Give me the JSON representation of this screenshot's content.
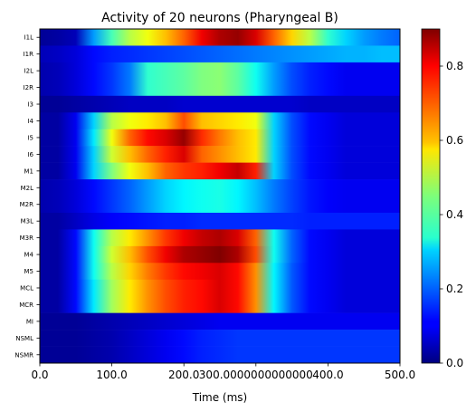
{
  "chart_data": {
    "type": "heatmap",
    "title": "Activity of 20 neurons (Pharyngeal B)",
    "xlabel": "Time (ms)",
    "ylabel": "",
    "xlim": [
      0,
      500
    ],
    "x_ticks": [
      "0.0",
      "100.0",
      "200.0",
      "300.0000000000000",
      "400.0",
      "500.0"
    ],
    "colorbar": {
      "range": [
        0.0,
        0.9
      ],
      "ticks": [
        "0.0",
        "0.2",
        "0.4",
        "0.6",
        "0.8"
      ],
      "colormap": "jet"
    },
    "time_ms": [
      0,
      25,
      50,
      75,
      100,
      125,
      150,
      175,
      200,
      225,
      250,
      275,
      300,
      325,
      350,
      375,
      400,
      425,
      450,
      475,
      500
    ],
    "series": [
      {
        "name": "I1L",
        "values": [
          0.02,
          0.03,
          0.05,
          0.25,
          0.4,
          0.5,
          0.55,
          0.62,
          0.7,
          0.8,
          0.86,
          0.88,
          0.82,
          0.7,
          0.6,
          0.5,
          0.38,
          0.3,
          0.25,
          0.22,
          0.2
        ]
      },
      {
        "name": "I1R",
        "values": [
          0.05,
          0.06,
          0.08,
          0.12,
          0.14,
          0.15,
          0.16,
          0.17,
          0.18,
          0.19,
          0.2,
          0.21,
          0.22,
          0.23,
          0.24,
          0.25,
          0.26,
          0.27,
          0.27,
          0.28,
          0.28
        ]
      },
      {
        "name": "I2L",
        "values": [
          0.04,
          0.05,
          0.08,
          0.12,
          0.16,
          0.22,
          0.38,
          0.4,
          0.42,
          0.45,
          0.46,
          0.42,
          0.35,
          0.25,
          0.18,
          0.14,
          0.12,
          0.1,
          0.1,
          0.1,
          0.1
        ]
      },
      {
        "name": "I2R",
        "values": [
          0.04,
          0.05,
          0.08,
          0.12,
          0.16,
          0.22,
          0.38,
          0.4,
          0.42,
          0.45,
          0.46,
          0.42,
          0.35,
          0.25,
          0.18,
          0.14,
          0.12,
          0.1,
          0.1,
          0.1,
          0.1
        ]
      },
      {
        "name": "I3",
        "values": [
          0.02,
          0.02,
          0.03,
          0.04,
          0.05,
          0.06,
          0.06,
          0.06,
          0.07,
          0.07,
          0.07,
          0.07,
          0.07,
          0.07,
          0.07,
          0.06,
          0.06,
          0.06,
          0.06,
          0.06,
          0.06
        ]
      },
      {
        "name": "I4",
        "values": [
          0.03,
          0.03,
          0.1,
          0.3,
          0.5,
          0.55,
          0.58,
          0.62,
          0.72,
          0.62,
          0.6,
          0.58,
          0.55,
          0.3,
          0.18,
          0.12,
          0.1,
          0.08,
          0.08,
          0.08,
          0.08
        ]
      },
      {
        "name": "I5",
        "values": [
          0.03,
          0.03,
          0.1,
          0.32,
          0.55,
          0.7,
          0.78,
          0.82,
          0.88,
          0.75,
          0.68,
          0.62,
          0.58,
          0.3,
          0.18,
          0.12,
          0.1,
          0.08,
          0.08,
          0.08,
          0.08
        ]
      },
      {
        "name": "I6",
        "values": [
          0.03,
          0.03,
          0.1,
          0.3,
          0.52,
          0.62,
          0.7,
          0.76,
          0.82,
          0.7,
          0.66,
          0.62,
          0.58,
          0.3,
          0.18,
          0.12,
          0.1,
          0.08,
          0.08,
          0.08,
          0.08
        ]
      },
      {
        "name": "M1",
        "values": [
          0.03,
          0.03,
          0.1,
          0.3,
          0.45,
          0.55,
          0.62,
          0.7,
          0.74,
          0.76,
          0.8,
          0.84,
          0.76,
          0.3,
          0.18,
          0.12,
          0.1,
          0.08,
          0.08,
          0.08,
          0.08
        ]
      },
      {
        "name": "M2L",
        "values": [
          0.04,
          0.05,
          0.08,
          0.12,
          0.16,
          0.2,
          0.25,
          0.3,
          0.33,
          0.35,
          0.36,
          0.33,
          0.28,
          0.22,
          0.17,
          0.13,
          0.11,
          0.1,
          0.1,
          0.1,
          0.1
        ]
      },
      {
        "name": "M2R",
        "values": [
          0.04,
          0.05,
          0.08,
          0.12,
          0.16,
          0.2,
          0.25,
          0.3,
          0.33,
          0.35,
          0.36,
          0.33,
          0.28,
          0.22,
          0.17,
          0.13,
          0.11,
          0.1,
          0.1,
          0.1,
          0.1
        ]
      },
      {
        "name": "M3L",
        "values": [
          0.03,
          0.03,
          0.06,
          0.09,
          0.11,
          0.12,
          0.13,
          0.14,
          0.14,
          0.15,
          0.15,
          0.15,
          0.15,
          0.15,
          0.15,
          0.14,
          0.14,
          0.14,
          0.14,
          0.14,
          0.14
        ]
      },
      {
        "name": "M3R",
        "values": [
          0.03,
          0.03,
          0.12,
          0.35,
          0.5,
          0.58,
          0.66,
          0.74,
          0.8,
          0.84,
          0.86,
          0.82,
          0.7,
          0.35,
          0.2,
          0.12,
          0.1,
          0.08,
          0.08,
          0.08,
          0.08
        ]
      },
      {
        "name": "M4",
        "values": [
          0.03,
          0.03,
          0.12,
          0.35,
          0.52,
          0.62,
          0.72,
          0.8,
          0.86,
          0.88,
          0.9,
          0.86,
          0.72,
          0.35,
          0.2,
          0.12,
          0.1,
          0.08,
          0.08,
          0.08,
          0.08
        ]
      },
      {
        "name": "M5",
        "values": [
          0.03,
          0.03,
          0.12,
          0.35,
          0.5,
          0.6,
          0.68,
          0.74,
          0.78,
          0.8,
          0.82,
          0.78,
          0.66,
          0.33,
          0.19,
          0.12,
          0.1,
          0.08,
          0.08,
          0.08,
          0.08
        ]
      },
      {
        "name": "MCL",
        "values": [
          0.03,
          0.03,
          0.12,
          0.32,
          0.48,
          0.58,
          0.66,
          0.72,
          0.76,
          0.78,
          0.82,
          0.78,
          0.66,
          0.33,
          0.19,
          0.12,
          0.1,
          0.08,
          0.08,
          0.08,
          0.08
        ]
      },
      {
        "name": "MCR",
        "values": [
          0.03,
          0.03,
          0.12,
          0.32,
          0.48,
          0.58,
          0.66,
          0.72,
          0.76,
          0.78,
          0.82,
          0.78,
          0.66,
          0.33,
          0.19,
          0.12,
          0.1,
          0.08,
          0.08,
          0.08,
          0.08
        ]
      },
      {
        "name": "MI",
        "values": [
          0.02,
          0.02,
          0.02,
          0.03,
          0.04,
          0.05,
          0.06,
          0.07,
          0.08,
          0.09,
          0.1,
          0.1,
          0.1,
          0.1,
          0.1,
          0.1,
          0.1,
          0.1,
          0.1,
          0.1,
          0.1
        ]
      },
      {
        "name": "NSML",
        "values": [
          0.02,
          0.02,
          0.02,
          0.03,
          0.04,
          0.06,
          0.08,
          0.1,
          0.12,
          0.14,
          0.15,
          0.16,
          0.16,
          0.16,
          0.16,
          0.16,
          0.16,
          0.16,
          0.16,
          0.16,
          0.16
        ]
      },
      {
        "name": "NSMR",
        "values": [
          0.02,
          0.02,
          0.02,
          0.03,
          0.04,
          0.06,
          0.08,
          0.1,
          0.12,
          0.14,
          0.15,
          0.16,
          0.16,
          0.16,
          0.16,
          0.16,
          0.16,
          0.16,
          0.16,
          0.16,
          0.16
        ]
      }
    ]
  }
}
